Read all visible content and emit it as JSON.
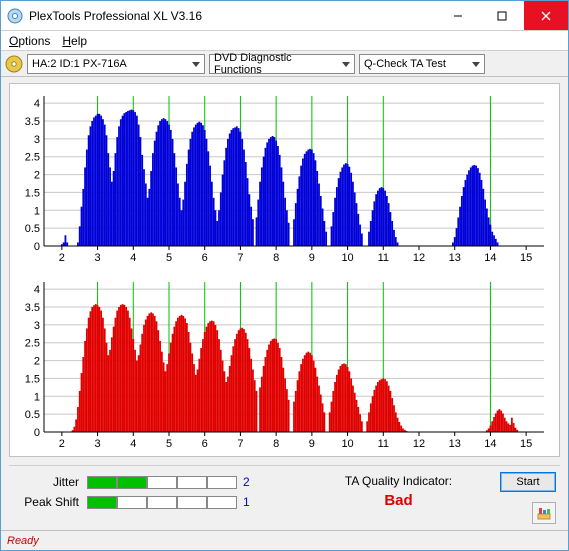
{
  "window": {
    "title": "PlexTools Professional XL V3.16"
  },
  "menu": {
    "options": "Options",
    "help": "Help"
  },
  "toolbar": {
    "device": "HA:2 ID:1   PX-716A",
    "func": "DVD Diagnostic Functions",
    "test": "Q-Check TA Test"
  },
  "chart_top": {
    "type": "bar-spectrum",
    "series_color": "#0000d8",
    "background_color": "#ffffff",
    "grid_color": "#c8c8c8",
    "vline_color": "#00c000",
    "ylim": [
      0,
      4.2
    ],
    "ytick_step": 0.5,
    "xlim": [
      1.5,
      15.5
    ],
    "xtick_step": 1,
    "vlines_x": [
      3,
      4,
      5,
      6,
      7,
      8,
      9,
      10,
      11,
      14
    ],
    "bins": [
      [
        1.95,
        0.0
      ],
      [
        2.0,
        0.05
      ],
      [
        2.05,
        0.1
      ],
      [
        2.1,
        0.3
      ],
      [
        2.15,
        0.1
      ],
      [
        2.2,
        0.0
      ],
      [
        2.45,
        0.1
      ],
      [
        2.5,
        0.55
      ],
      [
        2.55,
        1.1
      ],
      [
        2.6,
        1.6
      ],
      [
        2.65,
        2.2
      ],
      [
        2.7,
        2.7
      ],
      [
        2.75,
        3.1
      ],
      [
        2.8,
        3.35
      ],
      [
        2.85,
        3.5
      ],
      [
        2.9,
        3.6
      ],
      [
        2.95,
        3.65
      ],
      [
        3.0,
        3.7
      ],
      [
        3.05,
        3.7
      ],
      [
        3.1,
        3.65
      ],
      [
        3.15,
        3.55
      ],
      [
        3.2,
        3.4
      ],
      [
        3.25,
        3.1
      ],
      [
        3.3,
        2.6
      ],
      [
        3.35,
        2.2
      ],
      [
        3.4,
        1.8
      ],
      [
        3.45,
        2.1
      ],
      [
        3.5,
        2.6
      ],
      [
        3.55,
        3.05
      ],
      [
        3.6,
        3.35
      ],
      [
        3.65,
        3.55
      ],
      [
        3.7,
        3.65
      ],
      [
        3.75,
        3.72
      ],
      [
        3.8,
        3.75
      ],
      [
        3.85,
        3.78
      ],
      [
        3.9,
        3.8
      ],
      [
        3.95,
        3.82
      ],
      [
        4.0,
        3.8
      ],
      [
        4.05,
        3.75
      ],
      [
        4.1,
        3.65
      ],
      [
        4.15,
        3.4
      ],
      [
        4.2,
        3.05
      ],
      [
        4.25,
        2.55
      ],
      [
        4.3,
        2.15
      ],
      [
        4.35,
        1.75
      ],
      [
        4.4,
        1.35
      ],
      [
        4.45,
        1.6
      ],
      [
        4.5,
        2.1
      ],
      [
        4.55,
        2.6
      ],
      [
        4.6,
        2.95
      ],
      [
        4.65,
        3.2
      ],
      [
        4.7,
        3.38
      ],
      [
        4.75,
        3.5
      ],
      [
        4.8,
        3.55
      ],
      [
        4.85,
        3.58
      ],
      [
        4.9,
        3.55
      ],
      [
        4.95,
        3.5
      ],
      [
        5.0,
        3.4
      ],
      [
        5.05,
        3.25
      ],
      [
        5.1,
        3.0
      ],
      [
        5.15,
        2.6
      ],
      [
        5.2,
        2.2
      ],
      [
        5.25,
        1.75
      ],
      [
        5.3,
        1.35
      ],
      [
        5.35,
        1.0
      ],
      [
        5.4,
        1.3
      ],
      [
        5.45,
        1.8
      ],
      [
        5.5,
        2.3
      ],
      [
        5.55,
        2.7
      ],
      [
        5.6,
        3.0
      ],
      [
        5.65,
        3.2
      ],
      [
        5.7,
        3.32
      ],
      [
        5.75,
        3.4
      ],
      [
        5.8,
        3.45
      ],
      [
        5.85,
        3.48
      ],
      [
        5.9,
        3.45
      ],
      [
        5.95,
        3.38
      ],
      [
        6.0,
        3.25
      ],
      [
        6.05,
        3.0
      ],
      [
        6.1,
        2.65
      ],
      [
        6.15,
        2.25
      ],
      [
        6.2,
        1.8
      ],
      [
        6.25,
        1.35
      ],
      [
        6.3,
        1.0
      ],
      [
        6.35,
        0.7
      ],
      [
        6.4,
        1.0
      ],
      [
        6.45,
        1.5
      ],
      [
        6.5,
        2.0
      ],
      [
        6.55,
        2.4
      ],
      [
        6.6,
        2.75
      ],
      [
        6.65,
        3.0
      ],
      [
        6.7,
        3.15
      ],
      [
        6.75,
        3.25
      ],
      [
        6.8,
        3.3
      ],
      [
        6.85,
        3.32
      ],
      [
        6.9,
        3.35
      ],
      [
        6.95,
        3.3
      ],
      [
        7.0,
        3.2
      ],
      [
        7.05,
        3.0
      ],
      [
        7.1,
        2.7
      ],
      [
        7.15,
        2.35
      ],
      [
        7.2,
        1.9
      ],
      [
        7.25,
        1.45
      ],
      [
        7.3,
        1.1
      ],
      [
        7.35,
        0.75
      ],
      [
        7.45,
        0.8
      ],
      [
        7.5,
        1.3
      ],
      [
        7.55,
        1.8
      ],
      [
        7.6,
        2.2
      ],
      [
        7.65,
        2.5
      ],
      [
        7.7,
        2.75
      ],
      [
        7.75,
        2.9
      ],
      [
        7.8,
        3.0
      ],
      [
        7.85,
        3.05
      ],
      [
        7.9,
        3.08
      ],
      [
        7.95,
        3.05
      ],
      [
        8.0,
        2.95
      ],
      [
        8.05,
        2.8
      ],
      [
        8.1,
        2.55
      ],
      [
        8.15,
        2.2
      ],
      [
        8.2,
        1.8
      ],
      [
        8.25,
        1.35
      ],
      [
        8.3,
        1.0
      ],
      [
        8.35,
        0.65
      ],
      [
        8.5,
        0.75
      ],
      [
        8.55,
        1.2
      ],
      [
        8.6,
        1.6
      ],
      [
        8.65,
        1.95
      ],
      [
        8.7,
        2.25
      ],
      [
        8.75,
        2.45
      ],
      [
        8.8,
        2.58
      ],
      [
        8.85,
        2.65
      ],
      [
        8.9,
        2.7
      ],
      [
        8.95,
        2.72
      ],
      [
        9.0,
        2.7
      ],
      [
        9.05,
        2.6
      ],
      [
        9.1,
        2.4
      ],
      [
        9.15,
        2.1
      ],
      [
        9.2,
        1.75
      ],
      [
        9.25,
        1.4
      ],
      [
        9.3,
        1.05
      ],
      [
        9.35,
        0.7
      ],
      [
        9.4,
        0.4
      ],
      [
        9.55,
        0.55
      ],
      [
        9.6,
        0.95
      ],
      [
        9.65,
        1.35
      ],
      [
        9.7,
        1.65
      ],
      [
        9.75,
        1.9
      ],
      [
        9.8,
        2.08
      ],
      [
        9.85,
        2.2
      ],
      [
        9.9,
        2.28
      ],
      [
        9.95,
        2.32
      ],
      [
        10.0,
        2.3
      ],
      [
        10.05,
        2.22
      ],
      [
        10.1,
        2.05
      ],
      [
        10.15,
        1.8
      ],
      [
        10.2,
        1.5
      ],
      [
        10.25,
        1.2
      ],
      [
        10.3,
        0.9
      ],
      [
        10.35,
        0.6
      ],
      [
        10.4,
        0.35
      ],
      [
        10.6,
        0.4
      ],
      [
        10.65,
        0.7
      ],
      [
        10.7,
        1.0
      ],
      [
        10.75,
        1.25
      ],
      [
        10.8,
        1.45
      ],
      [
        10.85,
        1.55
      ],
      [
        10.9,
        1.62
      ],
      [
        10.95,
        1.65
      ],
      [
        11.0,
        1.62
      ],
      [
        11.05,
        1.55
      ],
      [
        11.1,
        1.4
      ],
      [
        11.15,
        1.2
      ],
      [
        11.2,
        0.95
      ],
      [
        11.25,
        0.7
      ],
      [
        11.3,
        0.45
      ],
      [
        11.35,
        0.25
      ],
      [
        11.4,
        0.1
      ],
      [
        12.95,
        0.1
      ],
      [
        13.0,
        0.25
      ],
      [
        13.05,
        0.5
      ],
      [
        13.1,
        0.8
      ],
      [
        13.15,
        1.1
      ],
      [
        13.2,
        1.4
      ],
      [
        13.25,
        1.65
      ],
      [
        13.3,
        1.85
      ],
      [
        13.35,
        2.0
      ],
      [
        13.4,
        2.12
      ],
      [
        13.45,
        2.2
      ],
      [
        13.5,
        2.25
      ],
      [
        13.55,
        2.27
      ],
      [
        13.6,
        2.25
      ],
      [
        13.65,
        2.18
      ],
      [
        13.7,
        2.05
      ],
      [
        13.75,
        1.85
      ],
      [
        13.8,
        1.6
      ],
      [
        13.85,
        1.3
      ],
      [
        13.9,
        1.05
      ],
      [
        13.95,
        0.8
      ],
      [
        14.0,
        0.6
      ],
      [
        14.05,
        0.4
      ],
      [
        14.1,
        0.3
      ],
      [
        14.15,
        0.2
      ],
      [
        14.2,
        0.1
      ]
    ]
  },
  "chart_bot": {
    "type": "bar-spectrum",
    "series_color": "#e00000",
    "background_color": "#ffffff",
    "grid_color": "#c8c8c8",
    "vline_color": "#00c000",
    "ylim": [
      0,
      4.2
    ],
    "ytick_step": 0.5,
    "xlim": [
      1.5,
      15.5
    ],
    "xtick_step": 1,
    "vlines_x": [
      3,
      4,
      5,
      6,
      7,
      8,
      9,
      10,
      11,
      14
    ],
    "bins": [
      [
        2.3,
        0.05
      ],
      [
        2.35,
        0.15
      ],
      [
        2.4,
        0.35
      ],
      [
        2.45,
        0.7
      ],
      [
        2.5,
        1.15
      ],
      [
        2.55,
        1.65
      ],
      [
        2.6,
        2.1
      ],
      [
        2.65,
        2.55
      ],
      [
        2.7,
        2.9
      ],
      [
        2.75,
        3.2
      ],
      [
        2.8,
        3.38
      ],
      [
        2.85,
        3.5
      ],
      [
        2.9,
        3.55
      ],
      [
        2.95,
        3.58
      ],
      [
        3.0,
        3.55
      ],
      [
        3.05,
        3.5
      ],
      [
        3.1,
        3.4
      ],
      [
        3.15,
        3.2
      ],
      [
        3.2,
        2.9
      ],
      [
        3.25,
        2.5
      ],
      [
        3.3,
        2.15
      ],
      [
        3.35,
        2.3
      ],
      [
        3.4,
        2.65
      ],
      [
        3.45,
        2.95
      ],
      [
        3.5,
        3.2
      ],
      [
        3.55,
        3.4
      ],
      [
        3.6,
        3.5
      ],
      [
        3.65,
        3.56
      ],
      [
        3.7,
        3.58
      ],
      [
        3.75,
        3.56
      ],
      [
        3.8,
        3.5
      ],
      [
        3.85,
        3.4
      ],
      [
        3.9,
        3.2
      ],
      [
        3.95,
        2.9
      ],
      [
        4.0,
        2.6
      ],
      [
        4.05,
        2.3
      ],
      [
        4.1,
        2.0
      ],
      [
        4.15,
        2.15
      ],
      [
        4.2,
        2.45
      ],
      [
        4.25,
        2.75
      ],
      [
        4.3,
        3.0
      ],
      [
        4.35,
        3.15
      ],
      [
        4.4,
        3.25
      ],
      [
        4.45,
        3.32
      ],
      [
        4.5,
        3.35
      ],
      [
        4.55,
        3.32
      ],
      [
        4.6,
        3.25
      ],
      [
        4.65,
        3.1
      ],
      [
        4.7,
        2.85
      ],
      [
        4.75,
        2.55
      ],
      [
        4.8,
        2.25
      ],
      [
        4.85,
        1.95
      ],
      [
        4.9,
        1.7
      ],
      [
        4.95,
        1.9
      ],
      [
        5.0,
        2.2
      ],
      [
        5.05,
        2.5
      ],
      [
        5.1,
        2.75
      ],
      [
        5.15,
        2.95
      ],
      [
        5.2,
        3.1
      ],
      [
        5.25,
        3.2
      ],
      [
        5.3,
        3.25
      ],
      [
        5.35,
        3.28
      ],
      [
        5.4,
        3.25
      ],
      [
        5.45,
        3.18
      ],
      [
        5.5,
        3.05
      ],
      [
        5.55,
        2.8
      ],
      [
        5.6,
        2.5
      ],
      [
        5.65,
        2.2
      ],
      [
        5.7,
        1.9
      ],
      [
        5.75,
        1.6
      ],
      [
        5.8,
        1.75
      ],
      [
        5.85,
        2.05
      ],
      [
        5.9,
        2.35
      ],
      [
        5.95,
        2.6
      ],
      [
        6.0,
        2.8
      ],
      [
        6.05,
        2.95
      ],
      [
        6.1,
        3.05
      ],
      [
        6.15,
        3.1
      ],
      [
        6.2,
        3.12
      ],
      [
        6.25,
        3.1
      ],
      [
        6.3,
        3.0
      ],
      [
        6.35,
        2.85
      ],
      [
        6.4,
        2.6
      ],
      [
        6.45,
        2.3
      ],
      [
        6.5,
        2.0
      ],
      [
        6.55,
        1.7
      ],
      [
        6.6,
        1.4
      ],
      [
        6.65,
        1.55
      ],
      [
        6.7,
        1.85
      ],
      [
        6.75,
        2.15
      ],
      [
        6.8,
        2.4
      ],
      [
        6.85,
        2.6
      ],
      [
        6.9,
        2.75
      ],
      [
        6.95,
        2.85
      ],
      [
        7.0,
        2.9
      ],
      [
        7.05,
        2.92
      ],
      [
        7.1,
        2.88
      ],
      [
        7.15,
        2.78
      ],
      [
        7.2,
        2.6
      ],
      [
        7.25,
        2.35
      ],
      [
        7.3,
        2.05
      ],
      [
        7.35,
        1.75
      ],
      [
        7.4,
        1.45
      ],
      [
        7.45,
        1.15
      ],
      [
        7.55,
        1.25
      ],
      [
        7.6,
        1.55
      ],
      [
        7.65,
        1.85
      ],
      [
        7.7,
        2.1
      ],
      [
        7.75,
        2.3
      ],
      [
        7.8,
        2.45
      ],
      [
        7.85,
        2.55
      ],
      [
        7.9,
        2.6
      ],
      [
        7.95,
        2.62
      ],
      [
        8.0,
        2.6
      ],
      [
        8.05,
        2.5
      ],
      [
        8.1,
        2.35
      ],
      [
        8.15,
        2.1
      ],
      [
        8.2,
        1.8
      ],
      [
        8.25,
        1.5
      ],
      [
        8.3,
        1.2
      ],
      [
        8.35,
        0.9
      ],
      [
        8.5,
        0.85
      ],
      [
        8.55,
        1.15
      ],
      [
        8.6,
        1.45
      ],
      [
        8.65,
        1.7
      ],
      [
        8.7,
        1.9
      ],
      [
        8.75,
        2.05
      ],
      [
        8.8,
        2.15
      ],
      [
        8.85,
        2.22
      ],
      [
        8.9,
        2.25
      ],
      [
        8.95,
        2.22
      ],
      [
        9.0,
        2.15
      ],
      [
        9.05,
        2.0
      ],
      [
        9.1,
        1.8
      ],
      [
        9.15,
        1.55
      ],
      [
        9.2,
        1.3
      ],
      [
        9.25,
        1.05
      ],
      [
        9.3,
        0.8
      ],
      [
        9.35,
        0.55
      ],
      [
        9.5,
        0.55
      ],
      [
        9.55,
        0.85
      ],
      [
        9.6,
        1.15
      ],
      [
        9.65,
        1.4
      ],
      [
        9.7,
        1.6
      ],
      [
        9.75,
        1.75
      ],
      [
        9.8,
        1.85
      ],
      [
        9.85,
        1.9
      ],
      [
        9.9,
        1.92
      ],
      [
        9.95,
        1.9
      ],
      [
        10.0,
        1.82
      ],
      [
        10.05,
        1.7
      ],
      [
        10.1,
        1.5
      ],
      [
        10.15,
        1.3
      ],
      [
        10.2,
        1.1
      ],
      [
        10.25,
        0.9
      ],
      [
        10.3,
        0.7
      ],
      [
        10.35,
        0.5
      ],
      [
        10.4,
        0.3
      ],
      [
        10.55,
        0.3
      ],
      [
        10.6,
        0.55
      ],
      [
        10.65,
        0.8
      ],
      [
        10.7,
        1.0
      ],
      [
        10.75,
        1.18
      ],
      [
        10.8,
        1.3
      ],
      [
        10.85,
        1.4
      ],
      [
        10.9,
        1.45
      ],
      [
        10.95,
        1.48
      ],
      [
        11.0,
        1.5
      ],
      [
        11.05,
        1.48
      ],
      [
        11.1,
        1.42
      ],
      [
        11.15,
        1.3
      ],
      [
        11.2,
        1.15
      ],
      [
        11.25,
        0.95
      ],
      [
        11.3,
        0.75
      ],
      [
        11.35,
        0.55
      ],
      [
        11.4,
        0.4
      ],
      [
        11.45,
        0.28
      ],
      [
        11.5,
        0.18
      ],
      [
        11.55,
        0.1
      ],
      [
        11.6,
        0.06
      ],
      [
        11.65,
        0.03
      ],
      [
        13.9,
        0.05
      ],
      [
        13.95,
        0.1
      ],
      [
        14.0,
        0.18
      ],
      [
        14.05,
        0.3
      ],
      [
        14.1,
        0.42
      ],
      [
        14.15,
        0.52
      ],
      [
        14.2,
        0.6
      ],
      [
        14.25,
        0.64
      ],
      [
        14.3,
        0.6
      ],
      [
        14.35,
        0.52
      ],
      [
        14.4,
        0.4
      ],
      [
        14.45,
        0.3
      ],
      [
        14.5,
        0.24
      ],
      [
        14.55,
        0.2
      ],
      [
        14.6,
        0.4
      ],
      [
        14.65,
        0.25
      ],
      [
        14.7,
        0.12
      ],
      [
        14.75,
        0.06
      ]
    ]
  },
  "metrics": {
    "jitter": {
      "label": "Jitter",
      "value": 2,
      "max": 5
    },
    "peakshift": {
      "label": "Peak Shift",
      "value": 1,
      "max": 5
    }
  },
  "ta": {
    "label": "TA Quality Indicator:",
    "value": "Bad",
    "color": "#e00000"
  },
  "buttons": {
    "start": "Start"
  },
  "status": {
    "text": "Ready"
  }
}
